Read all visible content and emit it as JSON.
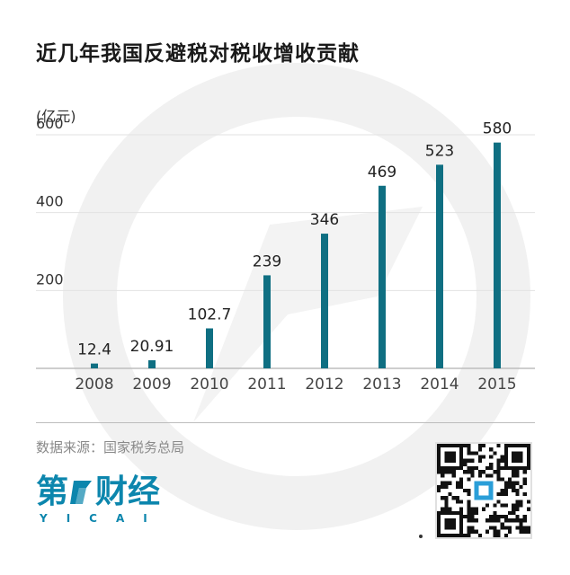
{
  "title": "近几年我国反避税对税收增收贡献",
  "unit": "(亿元)",
  "source": "数据来源：国家税务总局",
  "brand": {
    "name_parts": [
      "第",
      "财经"
    ],
    "sub": "YICAI",
    "color": "#0c86ad"
  },
  "colors": {
    "bar": "#0f6f82",
    "axis": "#bdbdbd",
    "grid": "#e2e2e2",
    "watermark": "#f1f1f1"
  },
  "chart_data": {
    "type": "bar",
    "title": "近几年我国反避税对税收增收贡献",
    "ylabel": "(亿元)",
    "xlabel": "",
    "categories": [
      "2008",
      "2009",
      "2010",
      "2011",
      "2012",
      "2013",
      "2014",
      "2015"
    ],
    "values": [
      12.4,
      20.91,
      102.7,
      239,
      346,
      469,
      523,
      580
    ],
    "value_labels": [
      "12.4",
      "20.91",
      "102.7",
      "239",
      "346",
      "469",
      "523",
      "580"
    ],
    "y_ticks": [
      200,
      400,
      600
    ],
    "ylim": [
      0,
      600
    ],
    "grid": true,
    "legend": "none"
  }
}
